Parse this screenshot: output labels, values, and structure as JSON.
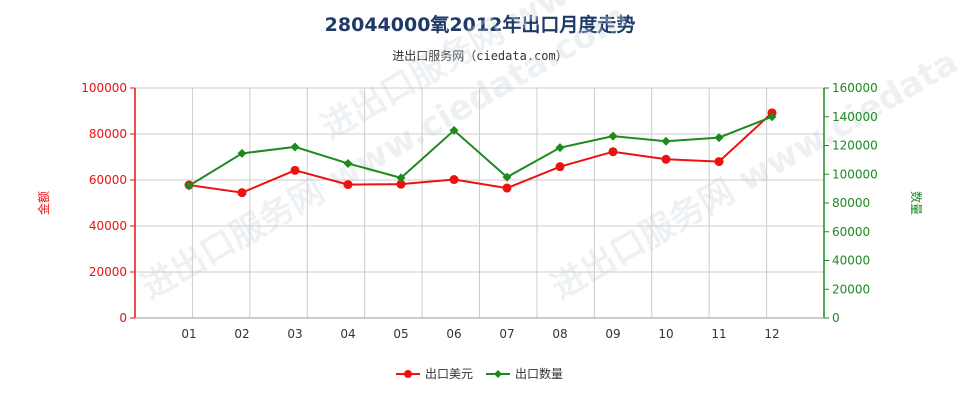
{
  "header": {
    "title": "28044000氧2012年出口月度走势",
    "subtitle": "进出口服务网（ciedata.com）"
  },
  "watermark": "进出口服务网 www.ciedata.com",
  "colors": {
    "left_axis": "#ee1111",
    "right_axis": "#1e8a1e",
    "grid": "#cccccc"
  },
  "chart_data": {
    "type": "line",
    "categories": [
      "01",
      "02",
      "03",
      "04",
      "05",
      "06",
      "07",
      "08",
      "09",
      "10",
      "11",
      "12"
    ],
    "yleft": {
      "label": "金额",
      "range": [
        0,
        100000
      ],
      "ticks": [
        "0",
        "20000",
        "40000",
        "60000",
        "80000",
        "100000"
      ]
    },
    "yright": {
      "label": "数量",
      "range": [
        0,
        160000
      ],
      "ticks": [
        "0",
        "20000",
        "40000",
        "60000",
        "80000",
        "100000",
        "120000",
        "140000",
        "160000"
      ]
    },
    "grid": true,
    "legend_position": "bottom-center",
    "series": [
      {
        "name": "出口美元",
        "axis": "left",
        "color": "#ee1111",
        "marker": "circle",
        "values": [
          57800,
          54500,
          64200,
          58000,
          58200,
          60200,
          56500,
          65800,
          72300,
          69000,
          68000,
          89200
        ]
      },
      {
        "name": "出口数量",
        "axis": "right",
        "color": "#1e8a1e",
        "marker": "diamond",
        "values": [
          92000,
          114500,
          119000,
          107500,
          97500,
          130500,
          98000,
          118500,
          126500,
          123000,
          125500,
          140000
        ]
      }
    ]
  }
}
